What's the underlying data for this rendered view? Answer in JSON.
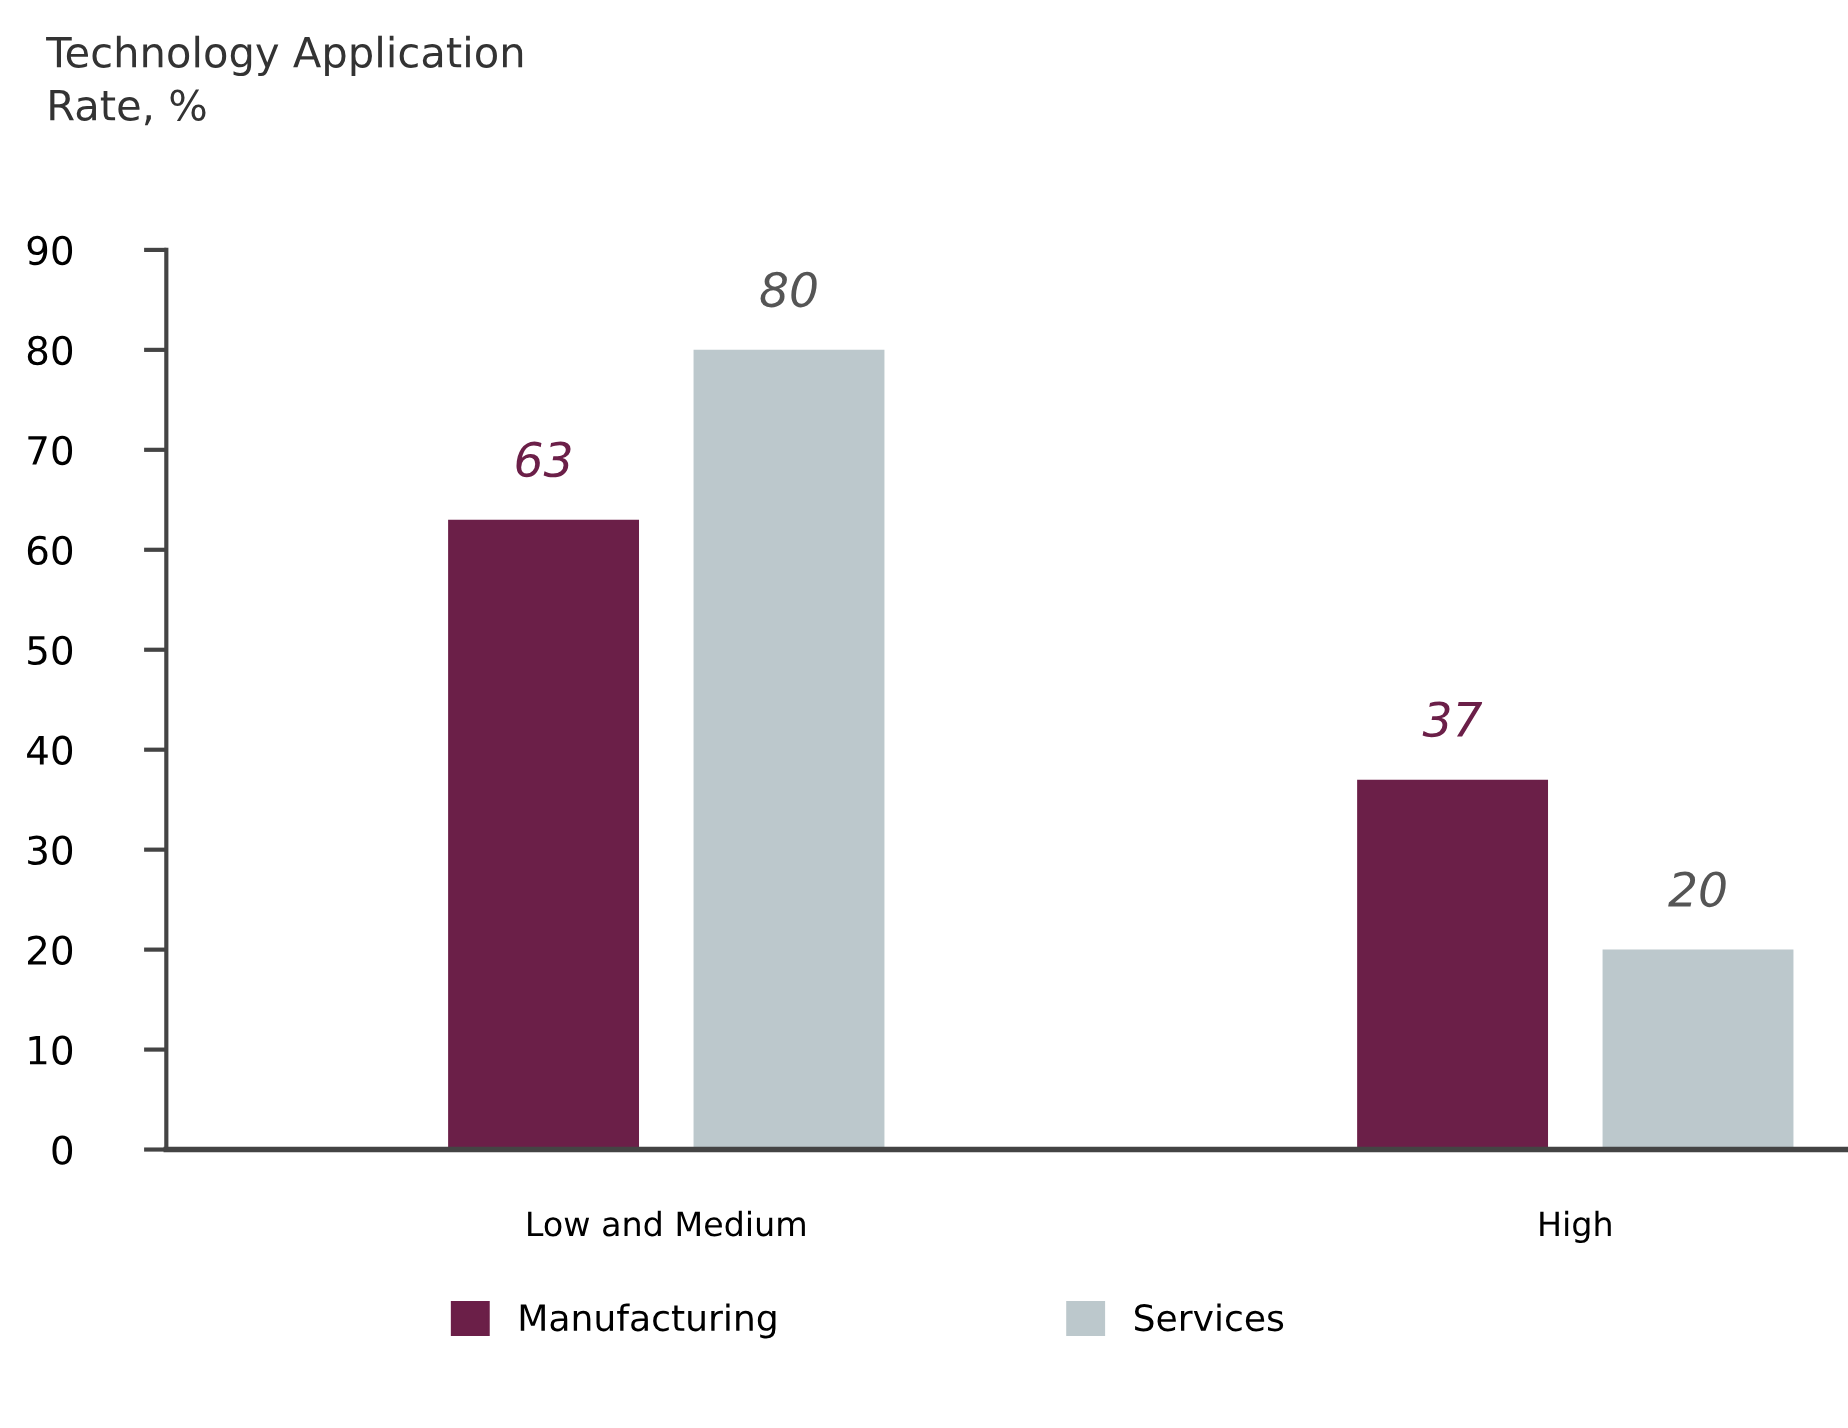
{
  "chart_data": {
    "type": "bar",
    "title": "Technology Application\nRate, %",
    "categories": [
      "Low and Medium",
      "High"
    ],
    "series": [
      {
        "name": "Manufacturing",
        "color": "#6b1f48",
        "values": [
          63,
          37
        ]
      },
      {
        "name": "Services",
        "color": "#bcc8cc",
        "values": [
          80,
          20
        ]
      }
    ],
    "ylim": [
      0,
      90
    ],
    "yticks": [
      0,
      10,
      20,
      30,
      40,
      50,
      60,
      70,
      80,
      90
    ],
    "grid": false,
    "legend": "bottom",
    "data_labels": true
  }
}
